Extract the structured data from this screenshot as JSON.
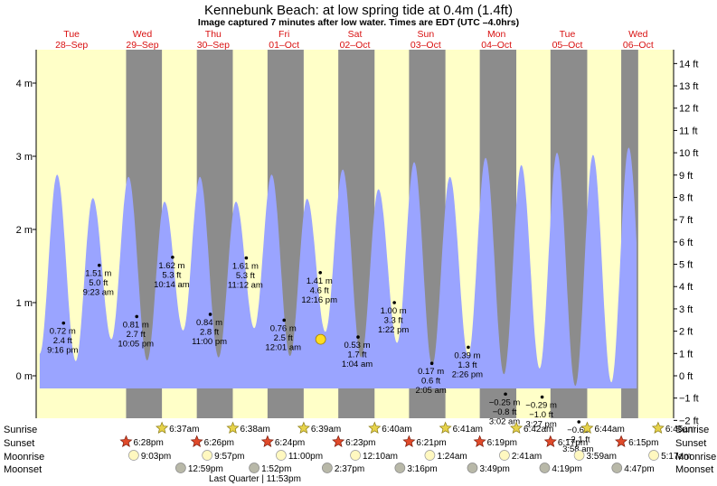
{
  "chart_data": {
    "type": "area",
    "title": "Kennebunk Beach: at low  spring tide at 0.4m (1.4ft)",
    "subtitle": "Image captured 7 minutes after low water. Times are EDT (UTC –4.0hrs)",
    "days": [
      {
        "name": "Tue",
        "date": "28–Sep"
      },
      {
        "name": "Wed",
        "date": "29–Sep"
      },
      {
        "name": "Thu",
        "date": "30–Sep"
      },
      {
        "name": "Fri",
        "date": "01–Oct"
      },
      {
        "name": "Sat",
        "date": "02–Oct"
      },
      {
        "name": "Sun",
        "date": "03–Oct"
      },
      {
        "name": "Mon",
        "date": "04–Oct"
      },
      {
        "name": "Tue",
        "date": "05–Oct"
      },
      {
        "name": "Wed",
        "date": "06–Oct"
      }
    ],
    "x_start_hours": -12,
    "x_end_hours": 204,
    "y_left_unit": "m",
    "y_left_ticks": [
      0,
      1,
      2,
      3,
      4
    ],
    "y_left_tick_labels": [
      "0 m",
      "1 m",
      "2 m",
      "3 m",
      "4 m"
    ],
    "y_right_tick_labels": [
      "−2 ft",
      "−1 ft",
      "0 ft",
      "1 ft",
      "2 ft",
      "3 ft",
      "4 ft",
      "5 ft",
      "6 ft",
      "7 ft",
      "8 ft",
      "9 ft",
      "10 ft",
      "11 ft",
      "12 ft",
      "13 ft",
      "14 ft"
    ],
    "ylim_m": [
      -0.6,
      4.3
    ],
    "night_bands": [
      {
        "start": 18.47,
        "end": 30.62
      },
      {
        "start": 42.43,
        "end": 54.63
      },
      {
        "start": 66.4,
        "end": 78.65
      },
      {
        "start": 90.38,
        "end": 102.67
      },
      {
        "start": 114.35,
        "end": 126.68
      },
      {
        "start": 138.32,
        "end": 150.7
      },
      {
        "start": 162.28,
        "end": 174.73
      },
      {
        "start": 186.25,
        "end": 192
      }
    ],
    "tide_events": [
      {
        "t": -17.0,
        "h": 2.7,
        "type": "high"
      },
      {
        "t": -10.8,
        "h": 0.3,
        "type": "low"
      },
      {
        "t": -4.9,
        "h": 2.75,
        "type": "high"
      },
      {
        "t": 1.4,
        "h": 0.2,
        "type": "low"
      },
      {
        "t": 7.2,
        "h": 2.43,
        "type": "high"
      },
      {
        "t": 13.5,
        "h": 0.5,
        "type": "low"
      },
      {
        "t": 19.3,
        "h": 2.72,
        "type": "high"
      },
      {
        "t": 25.6,
        "h": 0.21,
        "type": "low"
      },
      {
        "t": 31.5,
        "h": 2.38,
        "type": "high"
      },
      {
        "t": 37.8,
        "h": 0.62,
        "type": "low"
      },
      {
        "t": 43.5,
        "h": 2.72,
        "type": "high"
      },
      {
        "t": 49.8,
        "h": 0.25,
        "type": "low"
      },
      {
        "t": 55.7,
        "h": 2.38,
        "type": "high"
      },
      {
        "t": 61.9,
        "h": 0.65,
        "type": "low"
      },
      {
        "t": 67.8,
        "h": 2.75,
        "type": "high"
      },
      {
        "t": 74.0,
        "h": 0.27,
        "type": "low"
      },
      {
        "t": 79.8,
        "h": 2.42,
        "type": "high"
      },
      {
        "t": 86.0,
        "h": 0.6,
        "type": "low"
      },
      {
        "t": 91.9,
        "h": 2.82,
        "type": "high"
      },
      {
        "t": 98.1,
        "h": 0.25,
        "type": "low"
      },
      {
        "t": 104.0,
        "h": 2.55,
        "type": "high"
      },
      {
        "t": 110.3,
        "h": 0.45,
        "type": "low"
      },
      {
        "t": 116.1,
        "h": 2.92,
        "type": "high"
      },
      {
        "t": 122.2,
        "h": 0.14,
        "type": "low"
      },
      {
        "t": 128.2,
        "h": 2.72,
        "type": "high"
      },
      {
        "t": 134.4,
        "h": 0.27,
        "type": "low"
      },
      {
        "t": 140.3,
        "h": 2.98,
        "type": "high"
      },
      {
        "t": 146.5,
        "h": 0.02,
        "type": "low"
      },
      {
        "t": 152.4,
        "h": 2.88,
        "type": "high"
      },
      {
        "t": 158.6,
        "h": 0.1,
        "type": "low"
      },
      {
        "t": 164.5,
        "h": 3.05,
        "type": "high"
      },
      {
        "t": 170.7,
        "h": -0.14,
        "type": "low"
      },
      {
        "t": 176.7,
        "h": 3.02,
        "type": "high"
      },
      {
        "t": 182.9,
        "h": -0.09,
        "type": "low"
      },
      {
        "t": 188.8,
        "h": 3.12,
        "type": "high"
      },
      {
        "t": 195.0,
        "h": -0.25,
        "type": "low"
      },
      {
        "t": 201.0,
        "h": 3.18,
        "type": "high"
      },
      {
        "t": 207.2,
        "h": -0.3,
        "type": "low"
      }
    ],
    "fill_end_hours": 191.5,
    "tide_labels": [
      {
        "t": -2.73,
        "h": 0.72,
        "lines": [
          "0.72 m",
          "2.4 ft",
          "9:16 pm"
        ]
      },
      {
        "t": 9.38,
        "h": 1.51,
        "lines": [
          "1.51 m",
          "5.0 ft",
          "9:23 am"
        ]
      },
      {
        "t": 22.08,
        "h": 0.81,
        "lines": [
          "0.81 m",
          "2.7 ft",
          "10:05 pm"
        ]
      },
      {
        "t": 34.23,
        "h": 1.62,
        "lines": [
          "1.62 m",
          "5.3 ft",
          "10:14 am"
        ]
      },
      {
        "t": 47.0,
        "h": 0.84,
        "lines": [
          "0.84 m",
          "2.8 ft",
          "11:00 pm"
        ]
      },
      {
        "t": 59.2,
        "h": 1.61,
        "lines": [
          "1.61 m",
          "5.3 ft",
          "11:12 am"
        ]
      },
      {
        "t": 72.02,
        "h": 0.76,
        "lines": [
          "0.76 m",
          "2.5 ft",
          "12:01 am"
        ]
      },
      {
        "t": 84.27,
        "h": 1.41,
        "lines": [
          "1.41 m",
          "4.6 ft",
          "12:16 pm"
        ]
      },
      {
        "t": 97.07,
        "h": 0.53,
        "lines": [
          "0.53 m",
          "1.7 ft",
          "1:04 am"
        ]
      },
      {
        "t": 109.37,
        "h": 1.0,
        "lines": [
          "1.00 m",
          "3.3 ft",
          "1:22 pm"
        ]
      },
      {
        "t": 122.08,
        "h": 0.17,
        "lines": [
          "0.17 m",
          "0.6 ft",
          "2:05 am"
        ]
      },
      {
        "t": 134.43,
        "h": 0.39,
        "lines": [
          "0.39 m",
          "1.3 ft",
          "2:26 pm"
        ]
      },
      {
        "t": 147.03,
        "h": -0.25,
        "lines": [
          "−0.25 m",
          "−0.8 ft",
          "3:02 am"
        ]
      },
      {
        "t": 159.45,
        "h": -0.29,
        "lines": [
          "−0.29 m",
          "−1.0 ft",
          "3:27 pm"
        ]
      },
      {
        "t": 171.9,
        "h": -0.63,
        "lines": [
          "−0.63",
          "−2.1 ft",
          "3:58 am"
        ]
      }
    ],
    "current_marker": {
      "t": 84.4,
      "h": 0.4
    },
    "rows": [
      {
        "name": "Sunrise",
        "items": [
          {
            "t": 30.62,
            "text": "6:37am"
          },
          {
            "t": 54.63,
            "text": "6:38am"
          },
          {
            "t": 78.65,
            "text": "6:39am"
          },
          {
            "t": 102.67,
            "text": "6:40am"
          },
          {
            "t": 126.68,
            "text": "6:41am"
          },
          {
            "t": 150.7,
            "text": "6:42am"
          },
          {
            "t": 174.73,
            "text": "6:44am"
          },
          {
            "t": 198.75,
            "text": "6:45am"
          }
        ]
      },
      {
        "name": "Sunset",
        "items": [
          {
            "t": 18.47,
            "text": "6:28pm"
          },
          {
            "t": 42.43,
            "text": "6:26pm"
          },
          {
            "t": 66.4,
            "text": "6:24pm"
          },
          {
            "t": 90.38,
            "text": "6:23pm"
          },
          {
            "t": 114.35,
            "text": "6:21pm"
          },
          {
            "t": 138.32,
            "text": "6:19pm"
          },
          {
            "t": 162.28,
            "text": "6:17pm"
          },
          {
            "t": 186.25,
            "text": "6:15pm"
          }
        ]
      },
      {
        "name": "Moonrise",
        "items": [
          {
            "t": 21.05,
            "text": "9:03pm"
          },
          {
            "t": 45.95,
            "text": "9:57pm"
          },
          {
            "t": 71.0,
            "text": "11:00pm"
          },
          {
            "t": 96.17,
            "text": "12:10am"
          },
          {
            "t": 121.4,
            "text": "1:24am"
          },
          {
            "t": 146.68,
            "text": "2:41am"
          },
          {
            "t": 172.0,
            "text": "3:59am"
          },
          {
            "t": 197.28,
            "text": "5:17am"
          }
        ]
      },
      {
        "name": "Moonset",
        "items": [
          {
            "t": 36.98,
            "text": "12:59pm"
          },
          {
            "t": 61.87,
            "text": "1:52pm"
          },
          {
            "t": 86.62,
            "text": "2:37pm"
          },
          {
            "t": 111.27,
            "text": "3:16pm"
          },
          {
            "t": 135.82,
            "text": "3:49pm"
          },
          {
            "t": 160.32,
            "text": "4:19pm"
          },
          {
            "t": 184.78,
            "text": "4:47pm"
          }
        ]
      }
    ],
    "moon_phase_note": "Last Quarter | 11:53pm"
  }
}
